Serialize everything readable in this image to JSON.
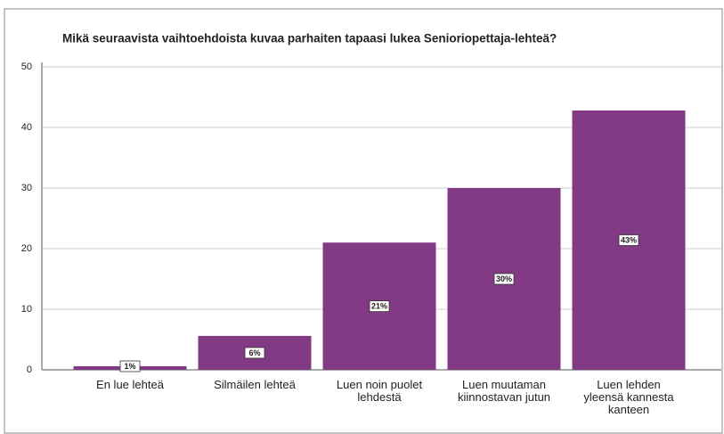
{
  "chart_data": {
    "type": "bar",
    "title": "Mikä seuraavista vaihtoehdoista kuvaa parhaiten tapaasi lukea Senioriopettaja-lehteä?",
    "categories": [
      "En lue lehteä",
      "Silmäilen lehteä",
      "Luen noin puolet lehdestä",
      "Luen muutaman kiinnostavan jutun",
      "Luen lehden yleensä kannesta kanteen"
    ],
    "values": [
      0.6,
      5.6,
      21,
      30,
      42.8
    ],
    "value_labels": [
      "1%",
      "6%",
      "21%",
      "30%",
      "43%"
    ],
    "color": "#833a85",
    "ylim": [
      0,
      50
    ],
    "yticks": [
      0,
      10,
      20,
      30,
      40,
      50
    ],
    "grid": true
  }
}
